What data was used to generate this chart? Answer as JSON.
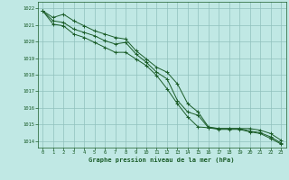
{
  "title": "Graphe pression niveau de la mer (hPa)",
  "background_color": "#c0e8e4",
  "grid_color": "#90c0bc",
  "line_color": "#1a5c28",
  "marker_color": "#1a5c28",
  "xlim": [
    -0.5,
    23.5
  ],
  "ylim": [
    1013.6,
    1022.4
  ],
  "yticks": [
    1014,
    1015,
    1016,
    1017,
    1018,
    1019,
    1020,
    1021,
    1022
  ],
  "xticks": [
    0,
    1,
    2,
    3,
    4,
    5,
    6,
    7,
    8,
    9,
    10,
    11,
    12,
    13,
    14,
    15,
    16,
    17,
    18,
    19,
    20,
    21,
    22,
    23
  ],
  "series_top": [
    1021.85,
    1021.45,
    1021.65,
    1021.25,
    1020.95,
    1020.65,
    1020.45,
    1020.25,
    1020.15,
    1019.45,
    1018.95,
    1018.45,
    1018.15,
    1017.45,
    1016.25,
    1015.75,
    1014.85,
    1014.75,
    1014.75,
    1014.75,
    1014.75,
    1014.65,
    1014.45,
    1014.05
  ],
  "series_mid": [
    1021.85,
    1021.25,
    1021.15,
    1020.75,
    1020.55,
    1020.35,
    1020.05,
    1019.85,
    1019.95,
    1019.25,
    1018.75,
    1018.15,
    1017.75,
    1016.45,
    1015.75,
    1015.55,
    1014.8,
    1014.75,
    1014.75,
    1014.75,
    1014.6,
    1014.5,
    1014.25,
    1013.88
  ],
  "series_bot": [
    1021.85,
    1021.05,
    1020.95,
    1020.45,
    1020.25,
    1019.95,
    1019.65,
    1019.35,
    1019.35,
    1018.95,
    1018.55,
    1017.95,
    1017.15,
    1016.25,
    1015.45,
    1014.85,
    1014.8,
    1014.7,
    1014.7,
    1014.7,
    1014.55,
    1014.45,
    1014.15,
    1013.82
  ]
}
